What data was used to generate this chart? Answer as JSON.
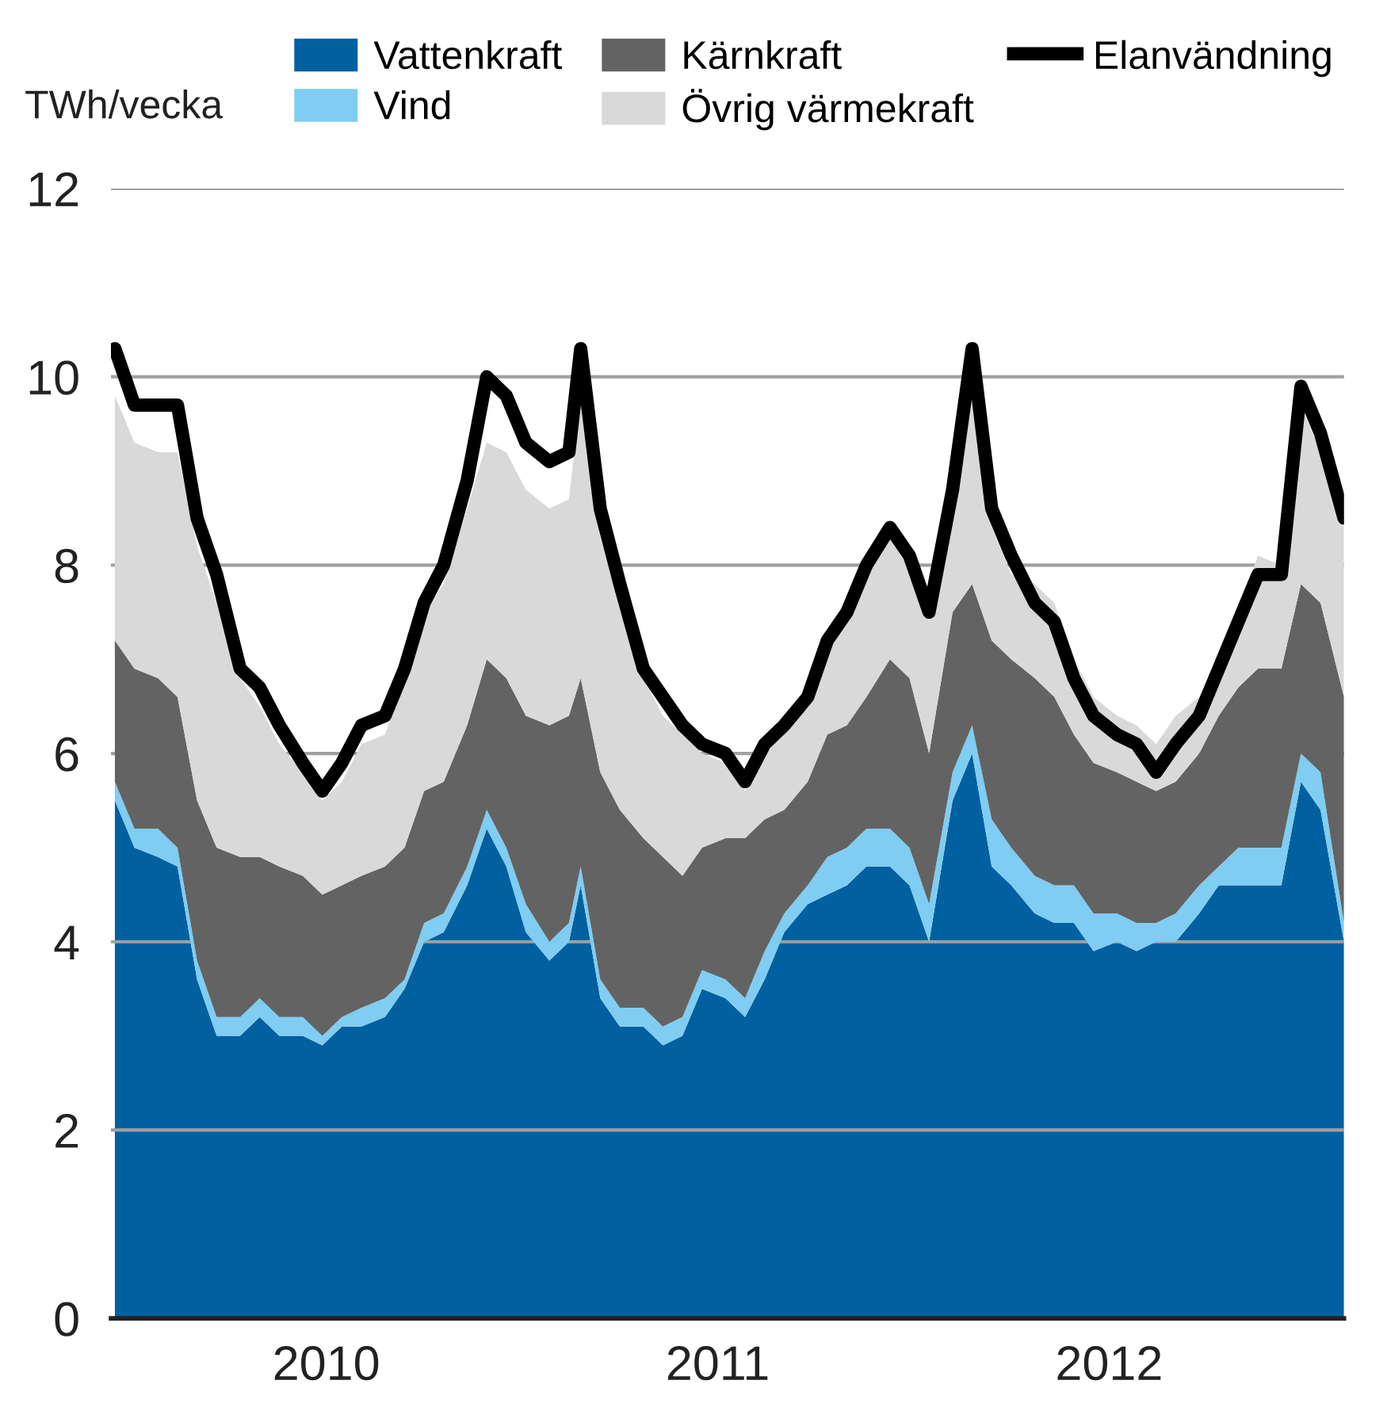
{
  "chart_data": {
    "type": "area",
    "ylabel": "TWh/vecka",
    "stacked": true,
    "grid": "y",
    "legend": "top",
    "x": [
      2009.96,
      2010.01,
      2010.07,
      2010.12,
      2010.17,
      2010.22,
      2010.28,
      2010.33,
      2010.38,
      2010.44,
      2010.49,
      2010.54,
      2010.59,
      2010.65,
      2010.7,
      2010.75,
      2010.8,
      2010.86,
      2010.91,
      2010.96,
      2011.01,
      2011.07,
      2011.12,
      2011.15,
      2011.2,
      2011.25,
      2011.31,
      2011.36,
      2011.41,
      2011.46,
      2011.52,
      2011.57,
      2011.62,
      2011.67,
      2011.73,
      2011.78,
      2011.83,
      2011.88,
      2011.94,
      2011.99,
      2012.04,
      2012.1,
      2012.15,
      2012.2,
      2012.25,
      2012.31,
      2012.36,
      2012.41,
      2012.46,
      2012.52,
      2012.57,
      2012.62,
      2012.67,
      2012.73,
      2012.78,
      2012.83,
      2012.88,
      2012.94,
      2012.99,
      2013.04,
      2013.1
    ],
    "xlim": [
      2009.95,
      2013.1
    ],
    "xticks": [
      {
        "value": 2010.5,
        "label": "2010"
      },
      {
        "value": 2011.5,
        "label": "2011"
      },
      {
        "value": 2012.5,
        "label": "2012"
      }
    ],
    "ylim": [
      0,
      12
    ],
    "yticks": [
      0,
      2,
      4,
      6,
      8,
      10,
      12
    ],
    "series": [
      {
        "name": "Vattenkraft",
        "color": "#0060a0",
        "values": [
          5.5,
          5.0,
          4.9,
          4.8,
          3.6,
          3.0,
          3.0,
          3.2,
          3.0,
          3.0,
          2.9,
          3.1,
          3.1,
          3.2,
          3.5,
          4.0,
          4.1,
          4.6,
          5.2,
          4.8,
          4.1,
          3.8,
          4.0,
          4.6,
          3.4,
          3.1,
          3.1,
          2.9,
          3.0,
          3.5,
          3.4,
          3.2,
          3.6,
          4.1,
          4.4,
          4.5,
          4.6,
          4.8,
          4.8,
          4.6,
          4.0,
          5.5,
          6.0,
          4.8,
          4.6,
          4.3,
          4.2,
          4.2,
          3.9,
          4.0,
          3.9,
          4.0,
          4.0,
          4.3,
          4.6,
          4.6,
          4.6,
          4.6,
          5.7,
          5.4,
          4.0
        ]
      },
      {
        "name": "Vind",
        "color": "#7fcdf2",
        "values": [
          0.2,
          0.2,
          0.3,
          0.2,
          0.2,
          0.2,
          0.2,
          0.2,
          0.2,
          0.2,
          0.1,
          0.1,
          0.2,
          0.2,
          0.1,
          0.2,
          0.2,
          0.2,
          0.2,
          0.2,
          0.3,
          0.2,
          0.2,
          0.2,
          0.2,
          0.2,
          0.2,
          0.2,
          0.2,
          0.2,
          0.2,
          0.2,
          0.3,
          0.2,
          0.2,
          0.4,
          0.4,
          0.4,
          0.4,
          0.4,
          0.4,
          0.3,
          0.3,
          0.5,
          0.4,
          0.4,
          0.4,
          0.4,
          0.4,
          0.3,
          0.3,
          0.2,
          0.3,
          0.3,
          0.2,
          0.4,
          0.4,
          0.4,
          0.3,
          0.4,
          0.2
        ]
      },
      {
        "name": "Kärnkraft",
        "color": "#636363",
        "values": [
          1.5,
          1.7,
          1.6,
          1.6,
          1.7,
          1.8,
          1.7,
          1.5,
          1.6,
          1.5,
          1.5,
          1.4,
          1.4,
          1.4,
          1.4,
          1.4,
          1.4,
          1.5,
          1.6,
          1.8,
          2.0,
          2.3,
          2.2,
          2.0,
          2.2,
          2.1,
          1.8,
          1.8,
          1.5,
          1.3,
          1.5,
          1.7,
          1.4,
          1.1,
          1.1,
          1.3,
          1.3,
          1.4,
          1.8,
          1.8,
          1.6,
          1.7,
          1.5,
          1.9,
          2.0,
          2.1,
          2.0,
          1.6,
          1.6,
          1.5,
          1.5,
          1.4,
          1.4,
          1.4,
          1.6,
          1.7,
          1.9,
          1.9,
          1.8,
          1.8,
          2.4
        ]
      },
      {
        "name": "Övrig värmekraft",
        "color": "#d9d9d9",
        "values": [
          2.6,
          2.4,
          2.4,
          2.6,
          2.7,
          2.6,
          1.9,
          1.6,
          1.3,
          1.1,
          1.0,
          1.1,
          1.4,
          1.4,
          1.8,
          1.9,
          2.1,
          2.3,
          2.3,
          2.4,
          2.4,
          2.3,
          2.3,
          3.0,
          2.5,
          2.2,
          1.7,
          1.5,
          1.5,
          1.0,
          0.8,
          0.5,
          0.7,
          0.8,
          0.8,
          0.9,
          1.2,
          1.3,
          1.3,
          1.2,
          1.4,
          1.1,
          2.2,
          1.2,
          0.9,
          1.0,
          1.0,
          0.8,
          0.7,
          0.6,
          0.6,
          0.5,
          0.7,
          0.6,
          0.6,
          0.8,
          1.2,
          1.1,
          1.9,
          1.6,
          1.8
        ]
      },
      {
        "name": "Elanvändning",
        "type": "line",
        "color": "#000000",
        "values": [
          10.3,
          9.7,
          9.7,
          9.7,
          8.5,
          7.9,
          6.9,
          6.7,
          6.3,
          5.9,
          5.6,
          5.9,
          6.3,
          6.4,
          6.9,
          7.6,
          8.0,
          8.9,
          10.0,
          9.8,
          9.3,
          9.1,
          9.2,
          10.3,
          8.6,
          7.8,
          6.9,
          6.6,
          6.3,
          6.1,
          6.0,
          5.7,
          6.1,
          6.3,
          6.6,
          7.2,
          7.5,
          8.0,
          8.4,
          8.1,
          7.5,
          8.8,
          10.3,
          8.6,
          8.1,
          7.6,
          7.4,
          6.8,
          6.4,
          6.2,
          6.1,
          5.8,
          6.1,
          6.4,
          6.9,
          7.4,
          7.9,
          7.9,
          9.9,
          9.4,
          8.5
        ]
      }
    ]
  }
}
